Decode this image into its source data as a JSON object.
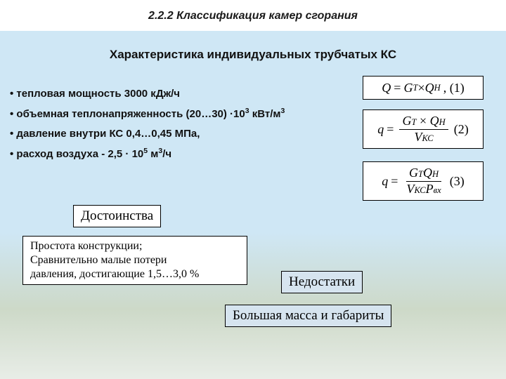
{
  "slide": {
    "heading": "2.2.2  Классификация камер сгорания",
    "title": "Характеристика  индивидуальных трубчатых КС",
    "bullets": [
      {
        "pre": "тепловая мощность 3000 кДж/ч",
        "sup": "",
        "post": ""
      },
      {
        "pre": "объемная теплонапряженность (20…30) ·10",
        "sup": "3",
        "post": " кВт/м",
        "sup2": "3",
        "post2": ""
      },
      {
        "pre": " давление внутри КС  0,4…0,45 МПа,",
        "sup": "",
        "post": ""
      },
      {
        "pre": " расход воздуха - 2,5 · 10",
        "sup": "5",
        "post": " м",
        "sup2": "3",
        "post2": "/ч"
      }
    ],
    "formulas": {
      "f1": {
        "lhs": "Q",
        "rhs_top": "G",
        "rhs_a_sub": "T",
        "rhs_times": " × ",
        "rhs_b": "Q",
        "rhs_b_sub": "H",
        "label": ", (1)"
      },
      "f2": {
        "lhs": "q",
        "num_a": "G",
        "num_a_sub": "T",
        "num_times": " × ",
        "num_b": "Q",
        "num_b_sub": "H",
        "den": "V",
        "den_sub": "КС",
        "label": "(2)"
      },
      "f3": {
        "lhs": "q",
        "num_a": "G",
        "num_a_sub": "T",
        "num_b": "Q",
        "num_b_sub": "H",
        "den_a": "V",
        "den_a_sub": "КС",
        "den_b": "P",
        "den_b_sub": "вх",
        "label": "(3)"
      }
    },
    "advantages": {
      "title": "Достоинства",
      "body_l1": "Простота конструкции;",
      "body_l2": "Сравнительно малые потери",
      "body_l3": "давления, достигающие 1,5…3,0 %"
    },
    "disadvantages": {
      "title": "Недостатки",
      "body": "Большая масса и габариты"
    }
  },
  "colors": {
    "bg_top": "#cfe7f5",
    "bg_bottom": "#e8ede7",
    "box_blue": "#d6e4ef",
    "text": "#111111"
  }
}
